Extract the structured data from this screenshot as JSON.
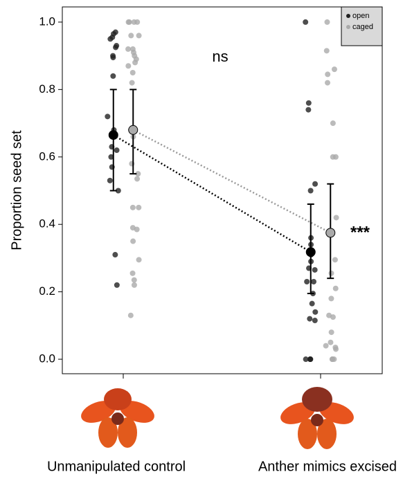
{
  "chart_data": {
    "type": "scatter",
    "y_label": "Proportion seed set",
    "categories": [
      "Unmanipulated control",
      "Anther mimics excised"
    ],
    "ylim": [
      -0.043,
      1.045
    ],
    "yticks": [
      {
        "value": 0,
        "label": "0.0"
      },
      0.2,
      0.4,
      0.6,
      0.8,
      {
        "value": 1,
        "label": "1.0"
      }
    ],
    "annotations": [
      "ns",
      "***"
    ],
    "legend": "upper right",
    "series": [
      {
        "name": "open",
        "color": "#222222",
        "groups": [
          [
            0.97,
            0.965,
            0.955,
            0.95,
            0.93,
            0.925,
            0.9,
            0.895,
            0.84,
            0.72,
            0.68,
            0.665,
            0.63,
            0.62,
            0.6,
            0.57,
            0.53,
            0.5,
            0.31,
            0.22
          ],
          [
            1.0,
            0.76,
            0.74,
            0.52,
            0.5,
            0.36,
            0.34,
            0.31,
            0.29,
            0.27,
            0.265,
            0.23,
            0.23,
            0.195,
            0.165,
            0.14,
            0.12,
            0.115,
            0,
            0,
            0,
            0
          ]
        ],
        "means": [
          0.665,
          0.318
        ],
        "lower": [
          0.5,
          0.195
        ],
        "upper": [
          0.8,
          0.46
        ]
      },
      {
        "name": "caged",
        "color": "#aaaaaa",
        "groups": [
          [
            1,
            1,
            1,
            1,
            0.96,
            0.96,
            0.92,
            0.92,
            0.91,
            0.9,
            0.89,
            0.88,
            0.87,
            0.85,
            0.82,
            0.68,
            0.66,
            0.58,
            0.55,
            0.535,
            0.45,
            0.45,
            0.39,
            0.385,
            0.35,
            0.295,
            0.255,
            0.235,
            0.22,
            0.13
          ],
          [
            1.0,
            0.915,
            0.86,
            0.845,
            0.82,
            0.7,
            0.6,
            0.6,
            0.42,
            0.295,
            0.255,
            0.21,
            0.18,
            0.13,
            0.125,
            0.08,
            0.05,
            0.04,
            0.035,
            0.03,
            0,
            0,
            0
          ]
        ],
        "means": [
          0.68,
          0.375
        ],
        "lower": [
          0.55,
          0.24
        ],
        "upper": [
          0.8,
          0.52
        ]
      }
    ]
  }
}
